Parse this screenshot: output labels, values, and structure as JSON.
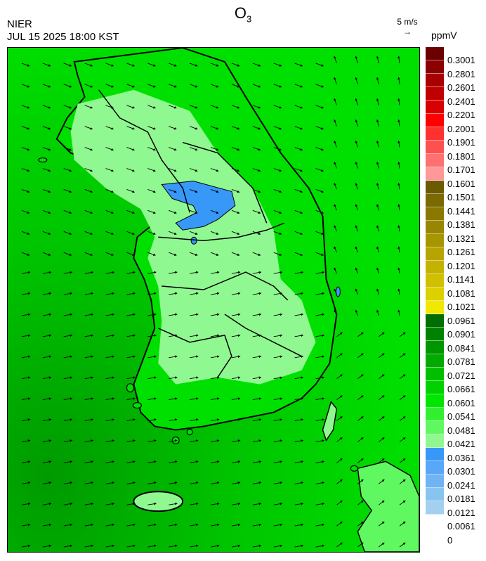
{
  "title": "O",
  "title_sub": "3",
  "org": "NIER",
  "timestamp": "JUL 15 2025 18:00 KST",
  "wind_ref": "5 m/s",
  "wind_ref_arrow": "→",
  "unit": "ppmV",
  "legend": {
    "labels": [
      "0.3001",
      "0.2801",
      "0.2601",
      "0.2401",
      "0.2201",
      "0.2001",
      "0.1901",
      "0.1801",
      "0.1701",
      "0.1601",
      "0.1501",
      "0.1441",
      "0.1381",
      "0.1321",
      "0.1261",
      "0.1201",
      "0.1141",
      "0.1081",
      "0.1021",
      "0.0961",
      "0.0901",
      "0.0841",
      "0.0781",
      "0.0721",
      "0.0661",
      "0.0601",
      "0.0541",
      "0.0481",
      "0.0421",
      "0.0361",
      "0.0301",
      "0.0241",
      "0.0181",
      "0.0121",
      "0.0061",
      "0"
    ],
    "colors": [
      "#6b0000",
      "#8b0000",
      "#a80000",
      "#c00000",
      "#d80000",
      "#ff0000",
      "#ff3030",
      "#ff5050",
      "#ff7070",
      "#ff9898",
      "#6b5a00",
      "#7a6a00",
      "#8a7800",
      "#988600",
      "#a89600",
      "#b8a400",
      "#c4b200",
      "#d0c000",
      "#dcd000",
      "#f0e800",
      "#006e00",
      "#008200",
      "#009600",
      "#00aa00",
      "#00be00",
      "#00d200",
      "#00e600",
      "#30f030",
      "#60f860",
      "#90f890",
      "#3898f8",
      "#58a8f8",
      "#70b4f4",
      "#88c4f0",
      "#a4d0f0"
    ]
  },
  "colors": {
    "land_light": "#90f890",
    "sea": "#00c800",
    "sea_dark": "#00a800",
    "low_o3": "#3898f8",
    "boundary": "#000000"
  }
}
